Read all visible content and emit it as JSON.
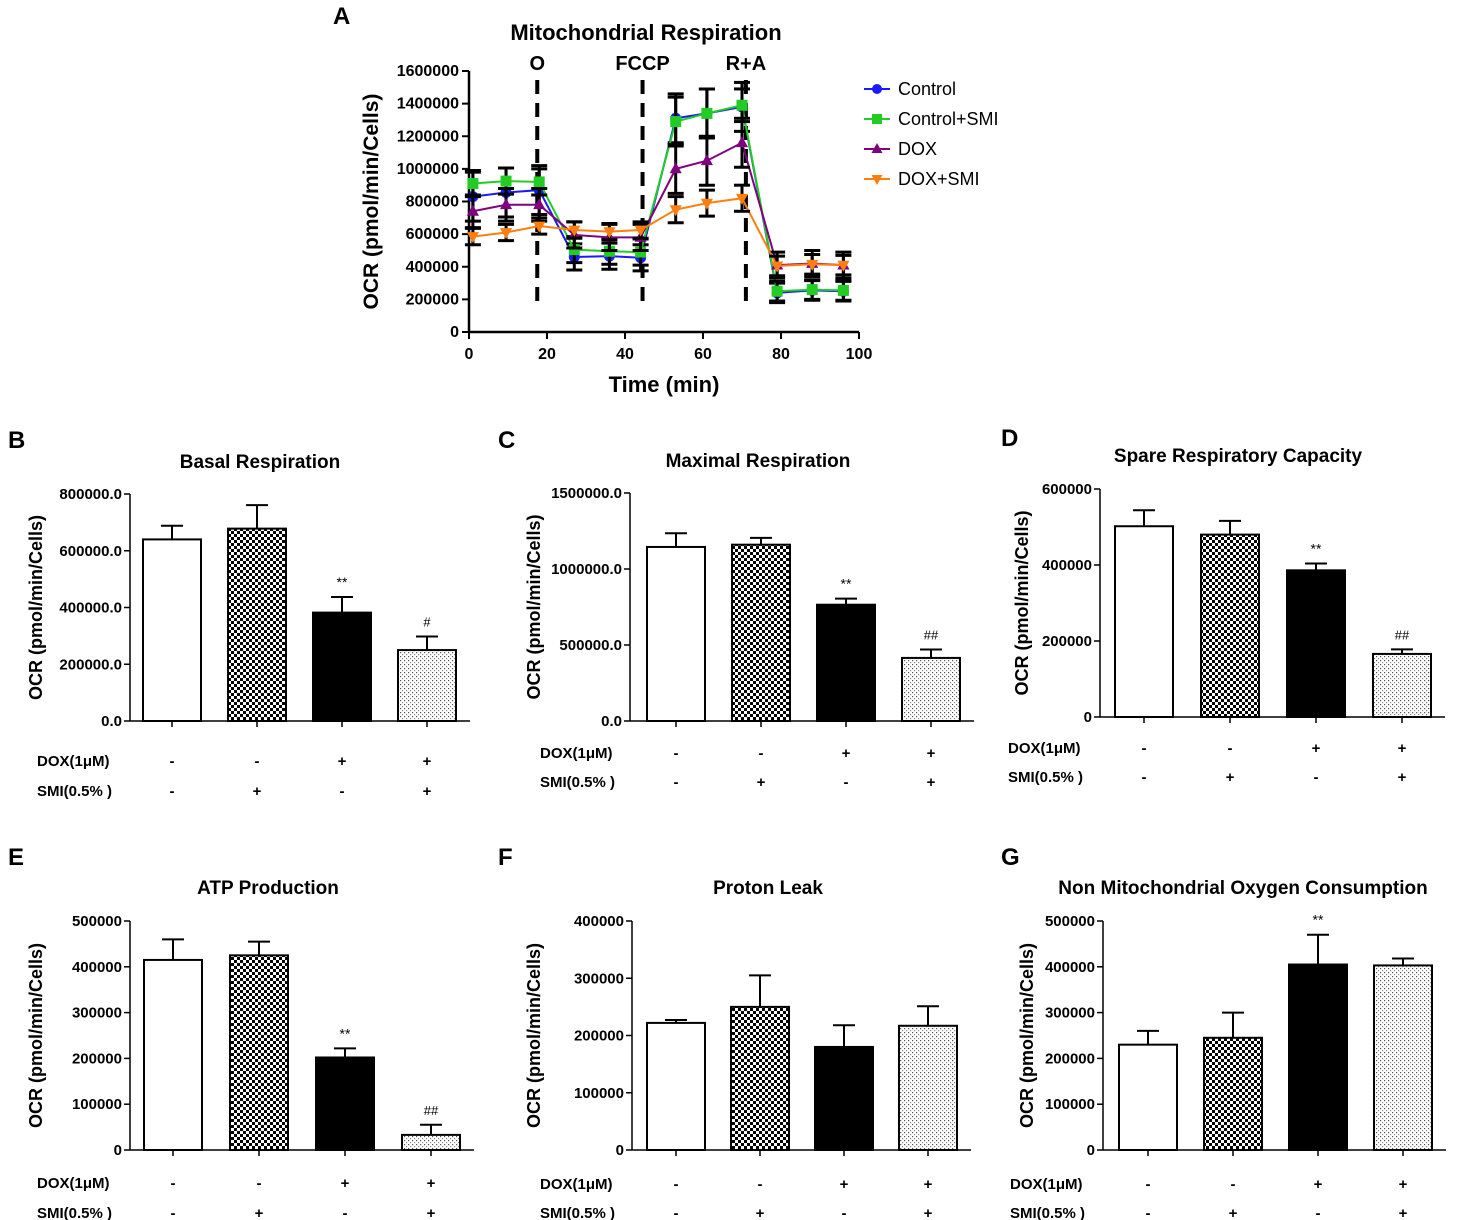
{
  "chart_data": [
    {
      "panel": "A",
      "type": "line",
      "title": "Mitochondrial Respiration",
      "xlabel": "Time (min)",
      "ylabel": "OCR (pmol/min/Cells)",
      "xlim": [
        0,
        100
      ],
      "ylim": [
        0,
        1600000
      ],
      "xticks": [
        0,
        20,
        40,
        60,
        80,
        100
      ],
      "yticks": [
        0,
        200000,
        400000,
        600000,
        800000,
        1000000,
        1200000,
        1400000,
        1600000
      ],
      "injections": [
        {
          "label": "O",
          "x": 17.5
        },
        {
          "label": "FCCP",
          "x": 44.5
        },
        {
          "label": "R+A",
          "x": 71
        }
      ],
      "x": [
        1,
        9.5,
        18,
        27,
        36,
        44,
        53,
        61,
        70,
        79,
        88,
        96
      ],
      "series": [
        {
          "name": "Control",
          "color": "#1a1aff",
          "marker": "circle",
          "values": [
            830000,
            855000,
            870000,
            460000,
            465000,
            455000,
            1310000,
            1340000,
            1380000,
            240000,
            255000,
            250000
          ],
          "errors": [
            150000,
            150000,
            150000,
            80000,
            80000,
            80000,
            150000,
            150000,
            150000,
            60000,
            60000,
            60000
          ]
        },
        {
          "name": "Control+SMI",
          "color": "#22cc22",
          "marker": "square",
          "values": [
            910000,
            925000,
            920000,
            505000,
            495000,
            490000,
            1290000,
            1340000,
            1390000,
            250000,
            260000,
            255000
          ],
          "errors": [
            80000,
            80000,
            80000,
            80000,
            80000,
            80000,
            150000,
            150000,
            100000,
            60000,
            60000,
            60000
          ]
        },
        {
          "name": "DOX",
          "color": "#800080",
          "marker": "triangle-up",
          "values": [
            740000,
            780000,
            780000,
            595000,
            580000,
            580000,
            1000000,
            1050000,
            1160000,
            410000,
            420000,
            410000
          ],
          "errors": [
            100000,
            100000,
            100000,
            80000,
            80000,
            80000,
            150000,
            150000,
            150000,
            80000,
            80000,
            80000
          ]
        },
        {
          "name": "DOX+SMI",
          "color": "#ff7f0e",
          "marker": "triangle-down",
          "values": [
            585000,
            610000,
            650000,
            625000,
            615000,
            625000,
            750000,
            790000,
            820000,
            405000,
            415000,
            410000
          ],
          "errors": [
            50000,
            50000,
            50000,
            50000,
            50000,
            50000,
            80000,
            80000,
            80000,
            60000,
            60000,
            60000
          ]
        }
      ],
      "legend": "top-right"
    },
    {
      "panel": "B",
      "type": "bar",
      "title": "Basal Respiration",
      "ylabel": "OCR (pmol/min/Cells)",
      "ylim": [
        0,
        800000
      ],
      "yticks": [
        0,
        200000,
        400000,
        600000,
        800000
      ],
      "yticklabels": [
        "0.0",
        "200000.0",
        "400000.0",
        "600000.0",
        "800000.0"
      ],
      "values": [
        640000,
        678000,
        382000,
        250000
      ],
      "errors": [
        48000,
        83000,
        55000,
        48000
      ],
      "sig": [
        "",
        "",
        "**",
        "#"
      ]
    },
    {
      "panel": "C",
      "type": "bar",
      "title": "Maximal Respiration",
      "ylabel": "OCR (pmol/min/Cells)",
      "ylim": [
        0,
        1500000
      ],
      "yticks": [
        0,
        500000,
        1000000,
        1500000
      ],
      "yticklabels": [
        "0.0",
        "500000.0",
        "1000000.0",
        "1500000.0"
      ],
      "values": [
        1145000,
        1160000,
        765000,
        415000
      ],
      "errors": [
        90000,
        45000,
        40000,
        55000
      ],
      "sig": [
        "",
        "",
        "**",
        "##"
      ]
    },
    {
      "panel": "D",
      "type": "bar",
      "title": "Spare Respiratory Capacity",
      "ylabel": "OCR (pmol/min/Cells)",
      "ylim": [
        0,
        600000
      ],
      "yticks": [
        0,
        200000,
        400000,
        600000
      ],
      "yticklabels": [
        "0",
        "200000",
        "400000",
        "600000"
      ],
      "values": [
        502000,
        480000,
        386000,
        166000
      ],
      "errors": [
        42000,
        36000,
        18000,
        12000
      ],
      "sig": [
        "",
        "",
        "**",
        "##"
      ]
    },
    {
      "panel": "E",
      "type": "bar",
      "title": "ATP Production",
      "ylabel": "OCR (pmol/min/Cells)",
      "ylim": [
        0,
        500000
      ],
      "yticks": [
        0,
        100000,
        200000,
        300000,
        400000,
        500000
      ],
      "yticklabels": [
        "0",
        "100000",
        "200000",
        "300000",
        "400000",
        "500000"
      ],
      "values": [
        415000,
        425000,
        202000,
        33000
      ],
      "errors": [
        45000,
        30000,
        20000,
        22000
      ],
      "sig": [
        "",
        "",
        "**",
        "##"
      ]
    },
    {
      "panel": "F",
      "type": "bar",
      "title": "Proton Leak",
      "ylabel": "OCR (pmol/min/Cells)",
      "ylim": [
        0,
        400000
      ],
      "yticks": [
        0,
        100000,
        200000,
        300000,
        400000
      ],
      "yticklabels": [
        "0",
        "100000",
        "200000",
        "300000",
        "400000"
      ],
      "values": [
        222000,
        250000,
        180000,
        217000
      ],
      "errors": [
        5000,
        55000,
        38000,
        34000
      ],
      "sig": [
        "",
        "",
        "",
        ""
      ]
    },
    {
      "panel": "G",
      "type": "bar",
      "title": "Non Mitochondrial Oxygen Consumption",
      "ylabel": "OCR (pmol/min/Cells)",
      "ylim": [
        0,
        500000
      ],
      "yticks": [
        0,
        100000,
        200000,
        300000,
        400000,
        500000
      ],
      "yticklabels": [
        "0",
        "100000",
        "200000",
        "300000",
        "400000",
        "500000"
      ],
      "values": [
        230000,
        245000,
        405000,
        403000
      ],
      "errors": [
        30000,
        55000,
        65000,
        15000
      ],
      "sig": [
        "",
        "",
        "**",
        ""
      ]
    }
  ],
  "conditions": {
    "dox_label": "DOX(1μM)",
    "smi_label": "SMI(0.5% )",
    "dox": [
      "-",
      "-",
      "+",
      "+"
    ],
    "smi": [
      "-",
      "+",
      "-",
      "+"
    ]
  },
  "bar_fills": [
    "white",
    "checker",
    "black",
    "dots"
  ]
}
